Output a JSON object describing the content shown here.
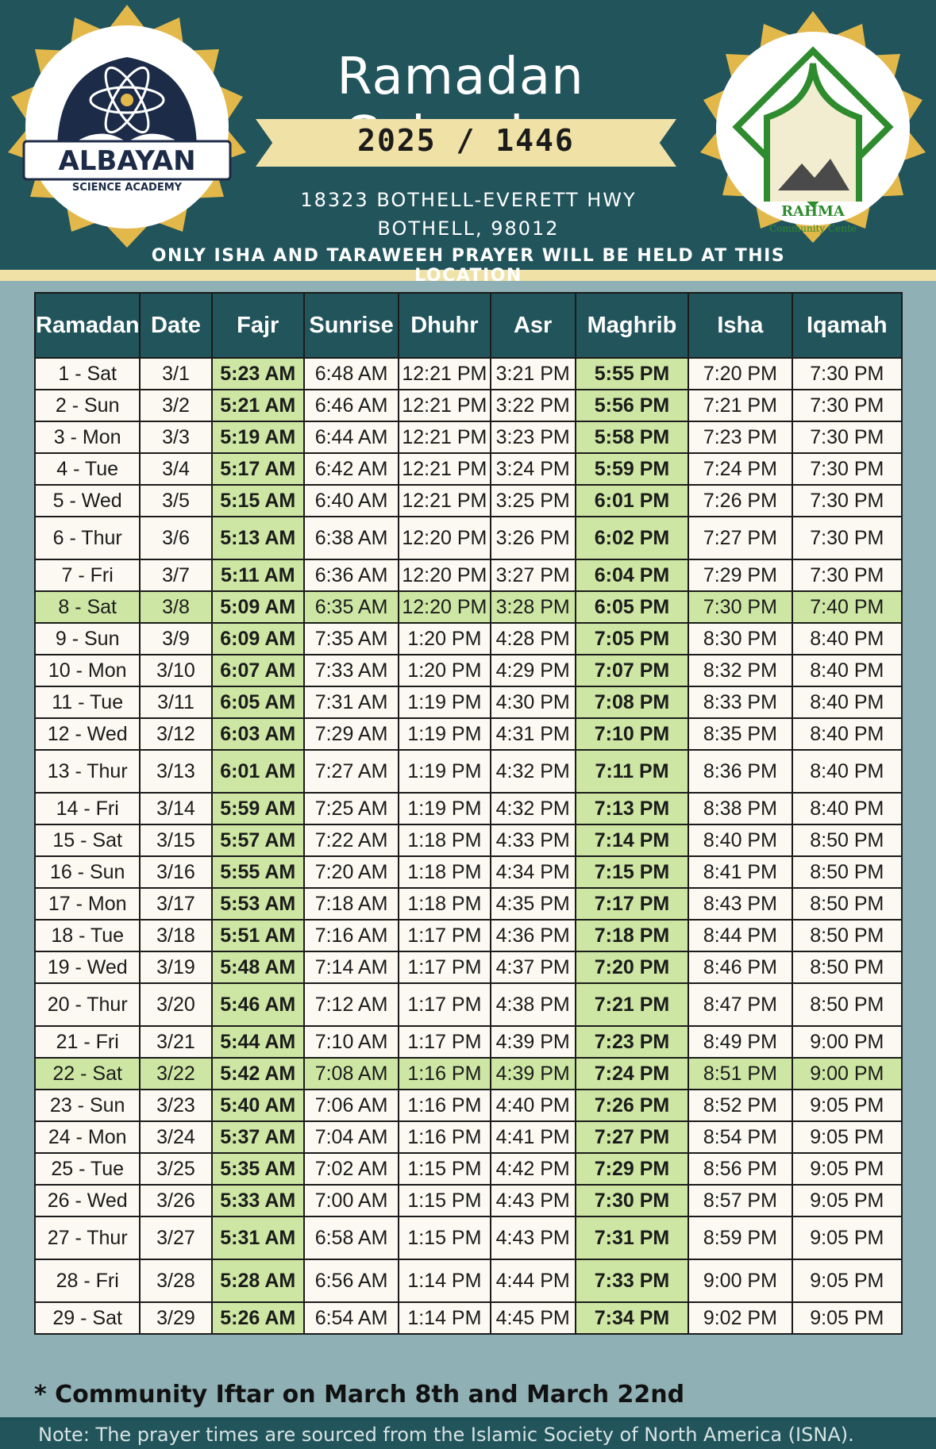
{
  "header": {
    "title": "Ramadan Calendar",
    "year": "2025 / 1446",
    "address_line1": "18323 BOTHELL-EVERETT HWY",
    "address_line2": "BOTHELL, 98012",
    "notice": "ONLY ISHA AND TARAWEEH PRAYER WILL BE HELD AT THIS LOCATION",
    "left_logo": {
      "name": "ALBAYAN",
      "tagline": "SCIENCE ACADEMY",
      "icon": "atom-book-icon"
    },
    "right_logo": {
      "name": "RAHMA",
      "tagline": "Community Cente",
      "icon": "mosque-dome-icon"
    }
  },
  "colors": {
    "header_bg": "#22545c",
    "ribbon": "#f0e2a6",
    "highlight": "#cde6a3",
    "table_bg": "#8fb0b4",
    "cell_bg": "#fbf9f1",
    "gold": "#e3b84a"
  },
  "table": {
    "columns": [
      "Ramadan",
      "Date",
      "Fajr",
      "Sunrise",
      "Dhuhr",
      "Asr",
      "Maghrib",
      "Isha",
      "Iqamah"
    ],
    "rows": [
      {
        "ramadan": "1 - Sat",
        "date": "3/1",
        "fajr": "5:23 AM",
        "sunrise": "6:48 AM",
        "dhuhr": "12:21 PM",
        "asr": "3:21 PM",
        "maghrib": "5:55 PM",
        "isha": "7:20 PM",
        "iqamah": "7:30 PM"
      },
      {
        "ramadan": "2 - Sun",
        "date": "3/2",
        "fajr": "5:21 AM",
        "sunrise": "6:46 AM",
        "dhuhr": "12:21 PM",
        "asr": "3:22 PM",
        "maghrib": "5:56 PM",
        "isha": "7:21 PM",
        "iqamah": "7:30 PM"
      },
      {
        "ramadan": "3 - Mon",
        "date": "3/3",
        "fajr": "5:19 AM",
        "sunrise": "6:44 AM",
        "dhuhr": "12:21 PM",
        "asr": "3:23 PM",
        "maghrib": "5:58 PM",
        "isha": "7:23 PM",
        "iqamah": "7:30 PM"
      },
      {
        "ramadan": "4 - Tue",
        "date": "3/4",
        "fajr": "5:17 AM",
        "sunrise": "6:42 AM",
        "dhuhr": "12:21 PM",
        "asr": "3:24 PM",
        "maghrib": "5:59 PM",
        "isha": "7:24 PM",
        "iqamah": "7:30 PM"
      },
      {
        "ramadan": "5 - Wed",
        "date": "3/5",
        "fajr": "5:15 AM",
        "sunrise": "6:40 AM",
        "dhuhr": "12:21 PM",
        "asr": "3:25 PM",
        "maghrib": "6:01 PM",
        "isha": "7:26 PM",
        "iqamah": "7:30 PM"
      },
      {
        "ramadan": "6 - Thur",
        "date": "3/6",
        "fajr": "5:13 AM",
        "sunrise": "6:38 AM",
        "dhuhr": "12:20 PM",
        "asr": "3:26 PM",
        "maghrib": "6:02 PM",
        "isha": "7:27 PM",
        "iqamah": "7:30 PM"
      },
      {
        "ramadan": "7 - Fri",
        "date": "3/7",
        "fajr": "5:11 AM",
        "sunrise": "6:36 AM",
        "dhuhr": "12:20 PM",
        "asr": "3:27 PM",
        "maghrib": "6:04 PM",
        "isha": "7:29 PM",
        "iqamah": "7:30 PM"
      },
      {
        "ramadan": "8 - Sat",
        "date": "3/8",
        "fajr": "5:09 AM",
        "sunrise": "6:35 AM",
        "dhuhr": "12:20 PM",
        "asr": "3:28 PM",
        "maghrib": "6:05 PM",
        "isha": "7:30 PM",
        "iqamah": "7:40 PM"
      },
      {
        "ramadan": "9 - Sun",
        "date": "3/9",
        "fajr": "6:09 AM",
        "sunrise": "7:35 AM",
        "dhuhr": "1:20 PM",
        "asr": "4:28 PM",
        "maghrib": "7:05 PM",
        "isha": "8:30 PM",
        "iqamah": "8:40 PM"
      },
      {
        "ramadan": "10 - Mon",
        "date": "3/10",
        "fajr": "6:07 AM",
        "sunrise": "7:33 AM",
        "dhuhr": "1:20 PM",
        "asr": "4:29 PM",
        "maghrib": "7:07 PM",
        "isha": "8:32 PM",
        "iqamah": "8:40 PM"
      },
      {
        "ramadan": "11 - Tue",
        "date": "3/11",
        "fajr": "6:05 AM",
        "sunrise": "7:31 AM",
        "dhuhr": "1:19 PM",
        "asr": "4:30 PM",
        "maghrib": "7:08 PM",
        "isha": "8:33 PM",
        "iqamah": "8:40 PM"
      },
      {
        "ramadan": "12 - Wed",
        "date": "3/12",
        "fajr": "6:03 AM",
        "sunrise": "7:29 AM",
        "dhuhr": "1:19 PM",
        "asr": "4:31 PM",
        "maghrib": "7:10 PM",
        "isha": "8:35 PM",
        "iqamah": "8:40 PM"
      },
      {
        "ramadan": "13 - Thur",
        "date": "3/13",
        "fajr": "6:01 AM",
        "sunrise": "7:27 AM",
        "dhuhr": "1:19 PM",
        "asr": "4:32 PM",
        "maghrib": "7:11 PM",
        "isha": "8:36 PM",
        "iqamah": "8:40 PM"
      },
      {
        "ramadan": "14 - Fri",
        "date": "3/14",
        "fajr": "5:59 AM",
        "sunrise": "7:25 AM",
        "dhuhr": "1:19 PM",
        "asr": "4:32 PM",
        "maghrib": "7:13 PM",
        "isha": "8:38 PM",
        "iqamah": "8:40 PM"
      },
      {
        "ramadan": "15 - Sat",
        "date": "3/15",
        "fajr": "5:57 AM",
        "sunrise": "7:22 AM",
        "dhuhr": "1:18 PM",
        "asr": "4:33 PM",
        "maghrib": "7:14 PM",
        "isha": "8:40 PM",
        "iqamah": "8:50 PM"
      },
      {
        "ramadan": "16 - Sun",
        "date": "3/16",
        "fajr": "5:55 AM",
        "sunrise": "7:20 AM",
        "dhuhr": "1:18 PM",
        "asr": "4:34 PM",
        "maghrib": "7:15 PM",
        "isha": "8:41 PM",
        "iqamah": "8:50 PM"
      },
      {
        "ramadan": "17 - Mon",
        "date": "3/17",
        "fajr": "5:53 AM",
        "sunrise": "7:18 AM",
        "dhuhr": "1:18 PM",
        "asr": "4:35 PM",
        "maghrib": "7:17 PM",
        "isha": "8:43 PM",
        "iqamah": "8:50 PM"
      },
      {
        "ramadan": "18 - Tue",
        "date": "3/18",
        "fajr": "5:51 AM",
        "sunrise": "7:16 AM",
        "dhuhr": "1:17 PM",
        "asr": "4:36 PM",
        "maghrib": "7:18 PM",
        "isha": "8:44 PM",
        "iqamah": "8:50 PM"
      },
      {
        "ramadan": "19 - Wed",
        "date": "3/19",
        "fajr": "5:48 AM",
        "sunrise": "7:14 AM",
        "dhuhr": "1:17 PM",
        "asr": "4:37 PM",
        "maghrib": "7:20 PM",
        "isha": "8:46 PM",
        "iqamah": "8:50 PM"
      },
      {
        "ramadan": "20 - Thur",
        "date": "3/20",
        "fajr": "5:46 AM",
        "sunrise": "7:12 AM",
        "dhuhr": "1:17 PM",
        "asr": "4:38 PM",
        "maghrib": "7:21 PM",
        "isha": "8:47 PM",
        "iqamah": "8:50 PM"
      },
      {
        "ramadan": "21 - Fri",
        "date": "3/21",
        "fajr": "5:44 AM",
        "sunrise": "7:10 AM",
        "dhuhr": "1:17 PM",
        "asr": "4:39 PM",
        "maghrib": "7:23 PM",
        "isha": "8:49 PM",
        "iqamah": "9:00 PM"
      },
      {
        "ramadan": "22 - Sat",
        "date": "3/22",
        "fajr": "5:42 AM",
        "sunrise": "7:08 AM",
        "dhuhr": "1:16 PM",
        "asr": "4:39 PM",
        "maghrib": "7:24 PM",
        "isha": "8:51 PM",
        "iqamah": "9:00 PM"
      },
      {
        "ramadan": "23 - Sun",
        "date": "3/23",
        "fajr": "5:40 AM",
        "sunrise": "7:06 AM",
        "dhuhr": "1:16 PM",
        "asr": "4:40 PM",
        "maghrib": "7:26 PM",
        "isha": "8:52 PM",
        "iqamah": "9:05 PM"
      },
      {
        "ramadan": "24 - Mon",
        "date": "3/24",
        "fajr": "5:37 AM",
        "sunrise": "7:04 AM",
        "dhuhr": "1:16 PM",
        "asr": "4:41 PM",
        "maghrib": "7:27 PM",
        "isha": "8:54 PM",
        "iqamah": "9:05 PM"
      },
      {
        "ramadan": "25 - Tue",
        "date": "3/25",
        "fajr": "5:35 AM",
        "sunrise": "7:02 AM",
        "dhuhr": "1:15 PM",
        "asr": "4:42 PM",
        "maghrib": "7:29 PM",
        "isha": "8:56 PM",
        "iqamah": "9:05 PM"
      },
      {
        "ramadan": "26 - Wed",
        "date": "3/26",
        "fajr": "5:33 AM",
        "sunrise": "7:00 AM",
        "dhuhr": "1:15 PM",
        "asr": "4:43 PM",
        "maghrib": "7:30 PM",
        "isha": "8:57 PM",
        "iqamah": "9:05 PM"
      },
      {
        "ramadan": "27 - Thur",
        "date": "3/27",
        "fajr": "5:31 AM",
        "sunrise": "6:58 AM",
        "dhuhr": "1:15 PM",
        "asr": "4:43 PM",
        "maghrib": "7:31 PM",
        "isha": "8:59 PM",
        "iqamah": "9:05 PM"
      },
      {
        "ramadan": "28 - Fri",
        "date": "3/28",
        "fajr": "5:28 AM",
        "sunrise": "6:56 AM",
        "dhuhr": "1:14 PM",
        "asr": "4:44 PM",
        "maghrib": "7:33 PM",
        "isha": "9:00 PM",
        "iqamah": "9:05 PM"
      },
      {
        "ramadan": "29 - Sat",
        "date": "3/29",
        "fajr": "5:26 AM",
        "sunrise": "6:54 AM",
        "dhuhr": "1:14 PM",
        "asr": "4:45 PM",
        "maghrib": "7:34 PM",
        "isha": "9:02 PM",
        "iqamah": "9:05 PM"
      }
    ]
  },
  "footnote": "* Community Iftar on March 8th and March 22nd",
  "note": "Note: The prayer times are sourced from the Islamic Society of North America (ISNA)."
}
